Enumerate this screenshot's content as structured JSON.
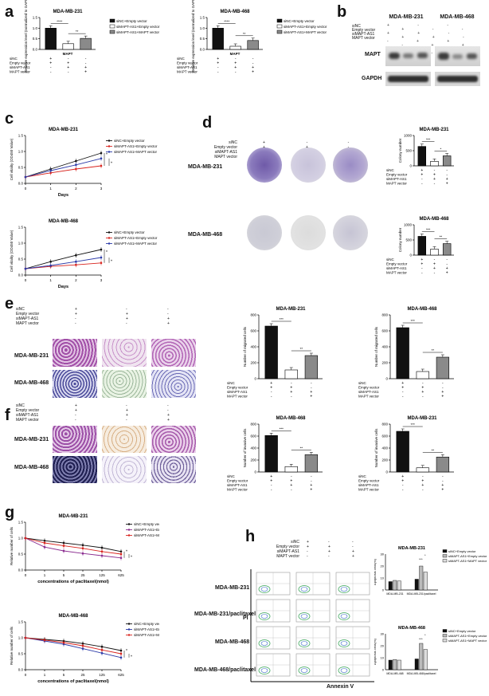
{
  "panels": {
    "a": {
      "label": "a",
      "charts": [
        {
          "title": "MDA-MB-231",
          "ylabel": "Relative expression level (normalized to GAPDH)",
          "xgroup": "MAPT",
          "yticks": [
            "0.0",
            "0.5",
            "1.0",
            "1.5"
          ],
          "legend": [
            "siNC+Empty vector",
            "siMAPT-AS1+Empty vector",
            "siMAPT-AS1+MAPT vector"
          ],
          "values": [
            1.0,
            0.27,
            0.52
          ],
          "sig": [
            "****",
            "**"
          ],
          "rows": [
            {
              "name": "siNC",
              "cells": [
                "+",
                "-",
                "-"
              ]
            },
            {
              "name": "Empty vector",
              "cells": [
                "+",
                "+",
                "-"
              ]
            },
            {
              "name": "siMAPT-AS1",
              "cells": [
                "-",
                "+",
                "+"
              ]
            },
            {
              "name": "MAPT vector",
              "cells": [
                "-",
                "-",
                "+"
              ]
            }
          ]
        },
        {
          "title": "MDA-MB-468",
          "ylabel": "Relative expression level (normalized to GAPDH)",
          "xgroup": "MAPT",
          "yticks": [
            "0.0",
            "0.5",
            "1.0",
            "1.5"
          ],
          "legend": [
            "siNC+Empty vector",
            "siMAPT-AS1+Empty vector",
            "siMAPT-AS1+MAPT vector"
          ],
          "values": [
            1.0,
            0.15,
            0.42
          ],
          "sig": [
            "****",
            "**"
          ],
          "rows": [
            {
              "name": "siNC",
              "cells": [
                "+",
                "-",
                "-"
              ]
            },
            {
              "name": "Empty vector",
              "cells": [
                "+",
                "+",
                "-"
              ]
            },
            {
              "name": "siMAPT-AS1",
              "cells": [
                "-",
                "+",
                "+"
              ]
            },
            {
              "name": "MAPT vector",
              "cells": [
                "-",
                "-",
                "+"
              ]
            }
          ]
        }
      ]
    },
    "b": {
      "label": "b",
      "titles": [
        "MDA-MB-231",
        "MDA-MB-468"
      ],
      "rowlabels": [
        "siNC",
        "Empty vector",
        "siMAPT-AS1",
        "MAPT vector"
      ],
      "bands": [
        "MAPT",
        "GAPDH"
      ]
    },
    "c": {
      "label": "c",
      "charts": [
        {
          "title": "MDA-MB-231",
          "ylabel": "Cell vitality (OD450 Value)",
          "xlabel": "Days",
          "xticks": [
            "0",
            "1",
            "2",
            "3"
          ],
          "yticks": [
            "0.0",
            "0.5",
            "1.0",
            "1.5"
          ],
          "series": [
            {
              "name": "siNC+Empty vector",
              "values": [
                0.2,
                0.45,
                0.7,
                0.95
              ],
              "color": "#111111"
            },
            {
              "name": "siMAPT-AS1+Empty vector",
              "values": [
                0.2,
                0.33,
                0.45,
                0.55
              ],
              "color": "#d8231d"
            },
            {
              "name": "siMAPT-AS1+MAPT vector",
              "values": [
                0.2,
                0.4,
                0.58,
                0.78
              ],
              "color": "#2b3aa8"
            }
          ],
          "sig": [
            "*",
            "*"
          ]
        },
        {
          "title": "MDA-MB-468",
          "ylabel": "Cell vitality (OD450 Value)",
          "xlabel": "Days",
          "xticks": [
            "0",
            "1",
            "2",
            "3"
          ],
          "yticks": [
            "0.0",
            "0.5",
            "1.0",
            "1.5"
          ],
          "series": [
            {
              "name": "siNC+Empty vector",
              "values": [
                0.2,
                0.42,
                0.62,
                0.8
              ],
              "color": "#111111"
            },
            {
              "name": "siMAPT-AS1+Empty vector",
              "values": [
                0.2,
                0.27,
                0.32,
                0.38
              ],
              "color": "#d8231d"
            },
            {
              "name": "siMAPT-AS1+MAPT vector",
              "values": [
                0.2,
                0.3,
                0.42,
                0.55
              ],
              "color": "#2b3aa8"
            }
          ],
          "sig": [
            "*",
            "*"
          ]
        }
      ]
    },
    "d": {
      "label": "d",
      "rowlabels": [
        "siNC",
        "Empty vector",
        "siMAPT-AS1",
        "MAPT vector"
      ],
      "cols": [
        [
          "+",
          "+",
          "-",
          "-"
        ],
        [
          "-",
          "+",
          "+",
          "-"
        ],
        [
          "-",
          "-",
          "+",
          "+"
        ]
      ],
      "cells": [
        "MDA-MB-231",
        "MDA-MB-468"
      ],
      "charts": [
        {
          "title": "MDA-MB-231",
          "ylabel": "Colony number",
          "yticks": [
            "0",
            "500",
            "1000"
          ],
          "values": [
            640,
            150,
            330
          ],
          "sig": [
            "***",
            "*"
          ],
          "rows": [
            {
              "name": "siNC",
              "cells": [
                "+",
                "-",
                "-"
              ]
            },
            {
              "name": "Empty vector",
              "cells": [
                "+",
                "+",
                "-"
              ]
            },
            {
              "name": "siMAPT-AS1",
              "cells": [
                "-",
                "+",
                "+"
              ]
            },
            {
              "name": "MAPT vector",
              "cells": [
                "-",
                "-",
                "+"
              ]
            }
          ]
        },
        {
          "title": "MDA-MB-468",
          "ylabel": "Colony number",
          "yticks": [
            "0",
            "500",
            "1000"
          ],
          "values": [
            620,
            200,
            380
          ],
          "sig": [
            "***",
            "**"
          ],
          "rows": [
            {
              "name": "siNC",
              "cells": [
                "+",
                "-",
                "-"
              ]
            },
            {
              "name": "Empty vector",
              "cells": [
                "+",
                "+",
                "-"
              ]
            },
            {
              "name": "siMAPT-AS1",
              "cells": [
                "-",
                "+",
                "+"
              ]
            },
            {
              "name": "MAPT vector",
              "cells": [
                "-",
                "-",
                "+"
              ]
            }
          ]
        }
      ]
    },
    "e": {
      "label": "e",
      "rowlabels": [
        "siNC",
        "Empty vector",
        "siMAPT-AS1",
        "MAPT vector"
      ],
      "cols": [
        [
          "+",
          "+",
          "-",
          "-"
        ],
        [
          "-",
          "+",
          "+",
          "-"
        ],
        [
          "-",
          "-",
          "+",
          "+"
        ]
      ],
      "cells": [
        "MDA-MB-231",
        "MDA-MB-468"
      ],
      "charts": [
        {
          "title": "MDA-MB-231",
          "ylabel": "Number of migrated cells",
          "yticks": [
            "0",
            "200",
            "400",
            "600",
            "800"
          ],
          "values": [
            660,
            110,
            290
          ],
          "sig": [
            "***",
            "**"
          ],
          "rows": [
            {
              "name": "siNC",
              "cells": [
                "+",
                "-",
                "-"
              ]
            },
            {
              "name": "Empty vector",
              "cells": [
                "+",
                "+",
                "-"
              ]
            },
            {
              "name": "siMAPT-AS1",
              "cells": [
                "-",
                "+",
                "+"
              ]
            },
            {
              "name": "MAPT vector",
              "cells": [
                "-",
                "-",
                "+"
              ]
            }
          ]
        },
        {
          "title": "MDA-MB-468",
          "ylabel": "Number of migrated cells",
          "yticks": [
            "0",
            "200",
            "400",
            "600",
            "800"
          ],
          "values": [
            640,
            90,
            270
          ],
          "sig": [
            "***",
            "**"
          ],
          "rows": [
            {
              "name": "siNC",
              "cells": [
                "+",
                "-",
                "-"
              ]
            },
            {
              "name": "Empty vector",
              "cells": [
                "+",
                "+",
                "-"
              ]
            },
            {
              "name": "siMAPT-AS1",
              "cells": [
                "-",
                "+",
                "+"
              ]
            },
            {
              "name": "MAPT vector",
              "cells": [
                "-",
                "-",
                "+"
              ]
            }
          ]
        }
      ]
    },
    "f": {
      "label": "f",
      "rowlabels": [
        "siNC",
        "Empty vector",
        "siMAPT-AS1",
        "MAPT vector"
      ],
      "cols": [
        [
          "+",
          "+",
          "-",
          "-"
        ],
        [
          "-",
          "+",
          "+",
          "-"
        ],
        [
          "-",
          "-",
          "+",
          "+"
        ]
      ],
      "cells": [
        "MDA-MB-231",
        "MDA-MB-468"
      ],
      "charts": [
        {
          "title": "MDA-MB-468",
          "ylabel": "Number of invasive cells",
          "yticks": [
            "0",
            "200",
            "400",
            "600",
            "800"
          ],
          "values": [
            610,
            90,
            290
          ],
          "sig": [
            "***",
            "**"
          ],
          "rows": [
            {
              "name": "siNC",
              "cells": [
                "+",
                "-",
                "-"
              ]
            },
            {
              "name": "Empty vector",
              "cells": [
                "+",
                "+",
                "-"
              ]
            },
            {
              "name": "siMAPT-AS1",
              "cells": [
                "-",
                "+",
                "+"
              ]
            },
            {
              "name": "MAPT vector",
              "cells": [
                "-",
                "-",
                "+"
              ]
            }
          ]
        },
        {
          "title": "MDA-MB-231",
          "ylabel": "Number of invasive cells",
          "yticks": [
            "0",
            "200",
            "400",
            "600",
            "800"
          ],
          "values": [
            680,
            70,
            250
          ],
          "sig": [
            "***",
            "**"
          ],
          "rows": [
            {
              "name": "siNC",
              "cells": [
                "+",
                "-",
                "-"
              ]
            },
            {
              "name": "Empty vector",
              "cells": [
                "+",
                "+",
                "-"
              ]
            },
            {
              "name": "siMAPT-AS1",
              "cells": [
                "-",
                "+",
                "+"
              ]
            },
            {
              "name": "MAPT vector",
              "cells": [
                "-",
                "-",
                "+"
              ]
            }
          ]
        }
      ]
    },
    "g": {
      "label": "g",
      "charts": [
        {
          "title": "MDA-MB-231",
          "ylabel": "Relative number of cells",
          "xlabel": "concentrations of paclitaxel(nmol)",
          "xticks": [
            "0",
            "1",
            "5",
            "25",
            "125",
            "625"
          ],
          "yticks": [
            "0.0",
            "0.5",
            "1.0",
            "1.5"
          ],
          "series": [
            {
              "name": "siNC+Empty vector",
              "values": [
                1.0,
                0.92,
                0.85,
                0.78,
                0.7,
                0.58
              ],
              "color": "#111111"
            },
            {
              "name": "siMAPT-AS1+Empty vector",
              "values": [
                1.0,
                0.72,
                0.6,
                0.52,
                0.45,
                0.38
              ],
              "color": "#8a2b8f"
            },
            {
              "name": "siMAPT-AS1+MAPT vector",
              "values": [
                1.0,
                0.85,
                0.76,
                0.68,
                0.58,
                0.5
              ],
              "color": "#d8231d"
            }
          ],
          "sig": [
            "*",
            "*"
          ]
        },
        {
          "title": "MDA-MB-468",
          "ylabel": "Relative number of cells",
          "xlabel": "concentrations of paclitaxel(nmol)",
          "xticks": [
            "0",
            "1",
            "5",
            "25",
            "125",
            "625"
          ],
          "yticks": [
            "0.0",
            "0.5",
            "1.0",
            "1.5"
          ],
          "series": [
            {
              "name": "siNC+Empty vector",
              "values": [
                1.0,
                0.95,
                0.9,
                0.82,
                0.72,
                0.6
              ],
              "color": "#111111"
            },
            {
              "name": "siMAPT-AS1+Empty vector",
              "values": [
                1.0,
                0.9,
                0.8,
                0.66,
                0.52,
                0.38
              ],
              "color": "#2b3aa8"
            },
            {
              "name": "siMAPT-AS1+MAPT vector",
              "values": [
                1.0,
                0.93,
                0.85,
                0.75,
                0.62,
                0.5
              ],
              "color": "#d8231d"
            }
          ],
          "sig": [
            "*",
            "*"
          ]
        }
      ]
    },
    "h": {
      "label": "h",
      "rowlabels": [
        "siNC",
        "Empty vector",
        "siMAPT-AS1",
        "MAPT vector"
      ],
      "cols": [
        [
          "+",
          "+",
          "-",
          "-"
        ],
        [
          "-",
          "+",
          "+",
          "-"
        ],
        [
          "-",
          "-",
          "+",
          "+"
        ]
      ],
      "rows": [
        "MDA-MB-231",
        "MDA-MB-231/paclitaxel",
        "MDA-MB-468",
        "MDA-MB-468/paclitaxel"
      ],
      "yaxis": "PI",
      "xaxis": "Annexin V",
      "charts": [
        {
          "title": "MDA-MB-231",
          "ylabel": "Apoptosis cells(%)",
          "yticks": [
            "0",
            "10",
            "20",
            "30"
          ],
          "legend": [
            "siNC+Empty vector",
            "siMAPT-AS1+Empty vector",
            "siMAPT-AS1+MAPT vector"
          ],
          "groups": [
            "MDA-MB-231",
            "MDA-MB-231/paclitaxel"
          ],
          "values": [
            [
              7,
              8,
              7.5
            ],
            [
              9,
              20,
              15
            ]
          ],
          "sig": [
            "***",
            "*"
          ]
        },
        {
          "title": "MDA-MB-468",
          "ylabel": "Apoptosis cells(%)",
          "yticks": [
            "0",
            "10",
            "20",
            "30"
          ],
          "legend": [
            "siNC+Empty vector",
            "siMAPT-AS1+Empty vector",
            "siMAPT-AS1+MAPT vector"
          ],
          "groups": [
            "MDA-MB-468",
            "MDA-MB-468/paclitaxel"
          ],
          "values": [
            [
              8,
              8.5,
              8
            ],
            [
              9,
              22,
              17
            ]
          ],
          "sig": [
            "***",
            "*"
          ]
        }
      ]
    }
  }
}
